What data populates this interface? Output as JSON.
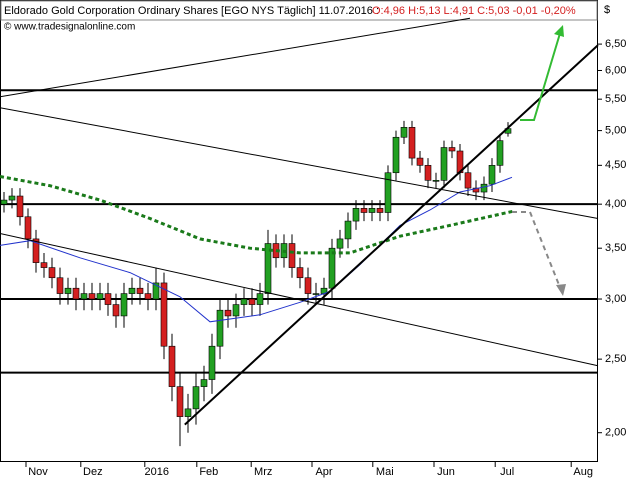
{
  "chart_data": {
    "type": "candlestick",
    "title": "Eldorado Gold Corporation Ordinary Shares [EGO NYS  Täglich] 11.07.2016 :",
    "quote": "O:4,96 H:5,13 L:4,91 C:5,03 -0,01 -0,20%",
    "source": "© www.tradesignalonline.com",
    "currency": "$",
    "log_scale": true,
    "ylim": [
      1.83,
      7.43
    ],
    "yticks": [
      {
        "value": 2,
        "label": "2,00"
      },
      {
        "value": 2.5,
        "label": "2,50"
      },
      {
        "value": 3,
        "label": "3,00"
      },
      {
        "value": 3.5,
        "label": "3,50"
      },
      {
        "value": 4,
        "label": "4,00"
      },
      {
        "value": 4.5,
        "label": "4,50"
      },
      {
        "value": 5,
        "label": "5,00"
      },
      {
        "value": 5.5,
        "label": "5,50"
      },
      {
        "value": 6,
        "label": "6,00"
      },
      {
        "value": 6.5,
        "label": "6,50"
      }
    ],
    "xlim": [
      -0.5,
      74.25
    ],
    "xticks": [
      {
        "value": 4.25,
        "label": "Nov"
      },
      {
        "value": 11.1,
        "label": "Dez"
      },
      {
        "value": 19.1,
        "label": "2016"
      },
      {
        "value": 25.6,
        "label": "Feb"
      },
      {
        "value": 32.4,
        "label": "Mrz"
      },
      {
        "value": 40,
        "label": "Apr"
      },
      {
        "value": 47.6,
        "label": "Mai"
      },
      {
        "value": 55.25,
        "label": "Jun"
      },
      {
        "value": 62.9,
        "label": "Jul"
      },
      {
        "value": 72.4,
        "label": "Aug"
      }
    ],
    "up_color": "#22a022",
    "down_color": "#d42020",
    "open": [
      4.0,
      4.05,
      4.1,
      3.85,
      3.6,
      3.35,
      3.3,
      3.2,
      3.05,
      3.1,
      3.0,
      3.05,
      3.0,
      3.05,
      2.95,
      2.85,
      3.05,
      3.1,
      3.05,
      3.0,
      3.15,
      2.6,
      2.3,
      2.1,
      2.15,
      2.3,
      2.35,
      2.6,
      2.9,
      2.85,
      2.95,
      3.0,
      2.95,
      3.05,
      3.55,
      3.4,
      3.55,
      3.3,
      3.2,
      3.05,
      3.05,
      3.1,
      3.5,
      3.6,
      3.8,
      3.95,
      3.9,
      3.95,
      3.9,
      4.4,
      4.9,
      5.05,
      4.6,
      4.5,
      4.3,
      4.3,
      4.75,
      4.7,
      4.4,
      4.2,
      4.15,
      4.25,
      4.5,
      4.96
    ],
    "high": [
      4.15,
      4.2,
      4.2,
      3.95,
      3.7,
      3.45,
      3.4,
      3.3,
      3.2,
      3.2,
      3.15,
      3.15,
      3.15,
      3.15,
      3.05,
      3.15,
      3.2,
      3.2,
      3.15,
      3.3,
      3.25,
      2.7,
      2.4,
      2.25,
      2.4,
      2.45,
      2.7,
      3.0,
      3.0,
      3.05,
      3.1,
      3.1,
      3.15,
      3.7,
      3.65,
      3.65,
      3.65,
      3.4,
      3.3,
      3.15,
      3.2,
      3.6,
      3.7,
      3.9,
      4.05,
      4.05,
      4.05,
      4.05,
      4.5,
      5.0,
      5.15,
      5.15,
      4.7,
      4.6,
      4.4,
      4.85,
      4.85,
      4.8,
      4.5,
      4.3,
      4.35,
      4.6,
      4.95,
      5.13
    ],
    "low": [
      3.9,
      3.95,
      3.75,
      3.5,
      3.25,
      3.2,
      3.1,
      2.95,
      2.95,
      2.9,
      2.9,
      2.9,
      2.9,
      2.85,
      2.75,
      2.75,
      2.95,
      2.95,
      2.9,
      2.9,
      2.5,
      2.2,
      1.92,
      2.0,
      2.05,
      2.2,
      2.25,
      2.5,
      2.75,
      2.75,
      2.85,
      2.85,
      2.85,
      2.95,
      3.3,
      3.3,
      3.2,
      3.1,
      2.95,
      2.95,
      2.95,
      3.0,
      3.4,
      3.5,
      3.7,
      3.8,
      3.8,
      3.8,
      3.8,
      4.3,
      4.8,
      4.5,
      4.4,
      4.2,
      4.2,
      4.2,
      4.6,
      4.3,
      4.1,
      4.05,
      4.05,
      4.15,
      4.4,
      4.91
    ],
    "close": [
      4.05,
      4.1,
      3.85,
      3.6,
      3.35,
      3.3,
      3.2,
      3.05,
      3.1,
      3.0,
      3.05,
      3.0,
      3.05,
      2.95,
      2.85,
      3.05,
      3.1,
      3.05,
      3.0,
      3.15,
      2.6,
      2.3,
      2.1,
      2.15,
      2.3,
      2.35,
      2.6,
      2.9,
      2.85,
      2.95,
      3.0,
      2.95,
      3.05,
      3.55,
      3.4,
      3.55,
      3.3,
      3.2,
      3.05,
      3.05,
      3.1,
      3.5,
      3.6,
      3.8,
      3.95,
      3.9,
      3.95,
      3.9,
      4.4,
      4.9,
      5.05,
      4.6,
      4.5,
      4.3,
      4.3,
      4.75,
      4.7,
      4.4,
      4.2,
      4.15,
      4.25,
      4.5,
      4.85,
      5.03
    ],
    "hlines": [
      5.65,
      4.0,
      3.0,
      2.4
    ],
    "overlays": [
      {
        "color": "#1a7a1a",
        "width": 3,
        "dash": true,
        "x": [
          -0.5,
          5.75,
          12,
          18.25,
          24.5,
          30.75,
          37,
          43.25,
          49.5,
          55.75,
          62,
          63.9
        ],
        "values": [
          4.35,
          4.23,
          4.05,
          3.83,
          3.6,
          3.5,
          3.45,
          3.45,
          3.63,
          3.75,
          3.88,
          3.92
        ]
      },
      {
        "color": "#2233cc",
        "width": 1,
        "dash": false,
        "x": [
          -0.5,
          3.25,
          9.5,
          15.75,
          22,
          25.75,
          32,
          37,
          40.75,
          44.5,
          49.5,
          53.25,
          57,
          60.75,
          63.5
        ],
        "values": [
          3.53,
          3.58,
          3.4,
          3.25,
          3.02,
          2.8,
          2.86,
          2.97,
          3.07,
          3.33,
          3.75,
          3.93,
          4.15,
          4.23,
          4.34
        ]
      },
      {
        "color": "#000000",
        "width": 1,
        "dash": false,
        "x": [
          -0.5,
          58.25
        ],
        "values": [
          5.54,
          7.03
        ]
      },
      {
        "color": "#000000",
        "width": 1,
        "dash": false,
        "x": [
          -0.5,
          74.25
        ],
        "values": [
          5.36,
          3.83
        ]
      },
      {
        "color": "#000000",
        "width": 1,
        "dash": false,
        "x": [
          -0.5,
          74.25
        ],
        "values": [
          3.66,
          2.45
        ]
      },
      {
        "color": "#000000",
        "width": 2,
        "dash": false,
        "x": [
          22.6,
          74.25
        ],
        "values": [
          2.05,
          6.48
        ]
      }
    ]
  }
}
